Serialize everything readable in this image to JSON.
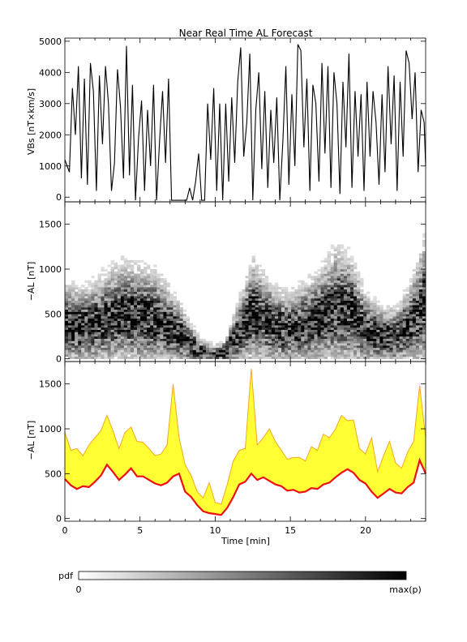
{
  "title": "Near Real Time AL Forecast",
  "colors": {
    "axis": "#000000",
    "vbs_line": "#000000",
    "band_outer": "#f5a623",
    "band_fill": "#ffff33",
    "median_line": "#ee1111",
    "bg": "#ffffff"
  },
  "chart_data": [
    {
      "type": "line",
      "panel": "top",
      "ylabel": "VBs [nT×km/s]",
      "xlim": [
        0,
        24
      ],
      "ylim": [
        -150,
        5100
      ],
      "yticks": [
        0,
        1000,
        2000,
        3000,
        4000,
        5000
      ],
      "series": [
        {
          "x": [
            0.0,
            0.3,
            0.5,
            0.7,
            0.9,
            1.1,
            1.3,
            1.5,
            1.7,
            1.9,
            2.1,
            2.3,
            2.5,
            2.7,
            2.9,
            3.1,
            3.3,
            3.5,
            3.7,
            3.9,
            4.1,
            4.3,
            4.5,
            4.7,
            4.9,
            5.1,
            5.3,
            5.5,
            5.7,
            5.9,
            6.1,
            6.3,
            6.5,
            6.7,
            6.9,
            7.1,
            7.3,
            7.5,
            7.7,
            7.9,
            8.1,
            8.3,
            8.5,
            8.7,
            8.9,
            9.1,
            9.3,
            9.5,
            9.7,
            9.9,
            10.1,
            10.3,
            10.5,
            10.7,
            10.9,
            11.1,
            11.3,
            11.5,
            11.7,
            11.9,
            12.1,
            12.3,
            12.5,
            12.7,
            12.9,
            13.1,
            13.3,
            13.5,
            13.7,
            13.9,
            14.1,
            14.3,
            14.5,
            14.7,
            14.9,
            15.1,
            15.3,
            15.5,
            15.7,
            15.9,
            16.1,
            16.3,
            16.5,
            16.7,
            16.9,
            17.1,
            17.3,
            17.5,
            17.7,
            17.9,
            18.1,
            18.3,
            18.5,
            18.7,
            18.9,
            19.1,
            19.3,
            19.5,
            19.7,
            19.9,
            20.1,
            20.3,
            20.5,
            20.7,
            20.9,
            21.1,
            21.3,
            21.5,
            21.7,
            21.9,
            22.1,
            22.3,
            22.5,
            22.7,
            22.9,
            23.1,
            23.3,
            23.5,
            23.7,
            23.9,
            24.0
          ],
          "values": [
            1200,
            800,
            3500,
            2000,
            4200,
            600,
            3800,
            400,
            4300,
            3400,
            200,
            3900,
            1700,
            4200,
            3000,
            200,
            1100,
            4100,
            2900,
            600,
            4850,
            700,
            3600,
            -100,
            1900,
            3100,
            200,
            2800,
            1000,
            3600,
            -100,
            1800,
            3400,
            1100,
            3800,
            -100,
            -100,
            -100,
            -100,
            -100,
            -100,
            300,
            -100,
            500,
            1400,
            -100,
            -100,
            3000,
            1200,
            3500,
            200,
            3000,
            -100,
            3000,
            500,
            3200,
            1100,
            3700,
            4800,
            1300,
            2400,
            4600,
            -100,
            2800,
            4000,
            900,
            3400,
            300,
            2800,
            1100,
            3200,
            -100,
            1800,
            4200,
            400,
            3300,
            1000,
            4900,
            4700,
            1600,
            3800,
            200,
            3600,
            3000,
            500,
            4300,
            1400,
            4200,
            300,
            4000,
            3000,
            100,
            3700,
            1600,
            4600,
            300,
            3400,
            1300,
            3300,
            200,
            3700,
            1300,
            3400,
            2400,
            400,
            3300,
            800,
            4200,
            1700,
            3900,
            200,
            3700,
            1300,
            4700,
            4300,
            2500,
            4000,
            800,
            2800,
            2400,
            1000
          ]
        }
      ]
    },
    {
      "type": "heatmap",
      "panel": "middle",
      "ylabel": "−AL [nT]",
      "xlim": [
        0,
        24
      ],
      "ylim": [
        -30,
        1750
      ],
      "yticks": [
        0,
        500,
        1000,
        1500
      ],
      "colorbar": {
        "label": "pdf",
        "min_label": "0",
        "max_label": "max(p)"
      },
      "density_center": [
        [
          0,
          350
        ],
        [
          1,
          330
        ],
        [
          2,
          360
        ],
        [
          3,
          430
        ],
        [
          4,
          470
        ],
        [
          5,
          440
        ],
        [
          6,
          420
        ],
        [
          7,
          330
        ],
        [
          8,
          200
        ],
        [
          9,
          60
        ],
        [
          10,
          30
        ],
        [
          10.7,
          60
        ],
        [
          11.5,
          250
        ],
        [
          12.5,
          480
        ],
        [
          13,
          420
        ],
        [
          14,
          330
        ],
        [
          15,
          300
        ],
        [
          16,
          360
        ],
        [
          17,
          420
        ],
        [
          18,
          540
        ],
        [
          19,
          500
        ],
        [
          20,
          300
        ],
        [
          21,
          230
        ],
        [
          22,
          220
        ],
        [
          23,
          350
        ],
        [
          24,
          600
        ]
      ]
    },
    {
      "type": "area",
      "panel": "bottom",
      "xlabel": "Time [min]",
      "ylabel": "−AL [nT]",
      "xlim": [
        0,
        24
      ],
      "ylim": [
        -30,
        1750
      ],
      "xticks": [
        0,
        5,
        10,
        15,
        20
      ],
      "yticks": [
        0,
        500,
        1000,
        1500
      ],
      "x": [
        0.0,
        0.4,
        0.8,
        1.2,
        1.6,
        2.0,
        2.4,
        2.8,
        3.2,
        3.6,
        4.0,
        4.4,
        4.8,
        5.2,
        5.6,
        6.0,
        6.4,
        6.8,
        7.2,
        7.6,
        8.0,
        8.4,
        8.8,
        9.2,
        9.6,
        10.0,
        10.4,
        10.8,
        11.2,
        11.6,
        12.0,
        12.4,
        12.8,
        13.2,
        13.6,
        14.0,
        14.4,
        14.8,
        15.2,
        15.6,
        16.0,
        16.4,
        16.8,
        17.2,
        17.6,
        18.0,
        18.4,
        18.8,
        19.2,
        19.6,
        20.0,
        20.4,
        20.8,
        21.2,
        21.6,
        22.0,
        22.4,
        22.8,
        23.2,
        23.6,
        24.0
      ],
      "series": [
        {
          "name": "",
          "color": "#ee1111",
          "values": [
            440,
            370,
            330,
            360,
            350,
            410,
            480,
            600,
            520,
            430,
            490,
            560,
            470,
            470,
            430,
            390,
            370,
            400,
            470,
            500,
            300,
            240,
            150,
            80,
            60,
            50,
            40,
            120,
            240,
            380,
            410,
            500,
            430,
            460,
            420,
            380,
            360,
            310,
            320,
            290,
            300,
            340,
            330,
            380,
            400,
            460,
            510,
            550,
            510,
            430,
            390,
            300,
            230,
            280,
            330,
            290,
            280,
            350,
            400,
            650,
            500
          ]
        },
        {
          "name": "",
          "color": "#f5a623",
          "values": [
            960,
            760,
            780,
            700,
            820,
            900,
            980,
            1150,
            980,
            780,
            960,
            1020,
            860,
            850,
            780,
            700,
            720,
            820,
            1500,
            900,
            600,
            480,
            300,
            230,
            400,
            180,
            160,
            380,
            640,
            760,
            780,
            1670,
            820,
            900,
            1000,
            860,
            760,
            660,
            680,
            680,
            640,
            800,
            760,
            940,
            900,
            1000,
            1150,
            1090,
            1100,
            780,
            720,
            900,
            520,
            700,
            860,
            620,
            560,
            740,
            860,
            1480,
            900
          ]
        }
      ]
    }
  ]
}
